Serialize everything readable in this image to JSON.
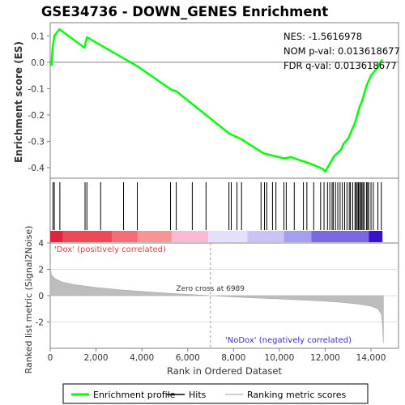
{
  "chart_data": {
    "type": "line",
    "title": "GSE34736 - DOWN_GENES Enrichment",
    "stats": {
      "nes": "NES: -1.5616978",
      "nom_p": "NOM p-val: 0.013618677",
      "fdr_q": "FDR q-val: 0.013618677"
    },
    "xlabel": "Rank in Ordered Dataset",
    "xlim": [
      0,
      15200
    ],
    "x_ticks": [
      0,
      2000,
      4000,
      6000,
      8000,
      10000,
      12000,
      14000
    ],
    "x_tick_labels": [
      "0",
      "2,000",
      "4,000",
      "6,000",
      "8,000",
      "10,000",
      "12,000",
      "14,000"
    ],
    "es_panel": {
      "ylabel": "Enrichment score (ES)",
      "ylim": [
        -0.44,
        0.15
      ],
      "y_ticks": [
        0.1,
        0.0,
        -0.1,
        -0.2,
        -0.3,
        -0.4
      ],
      "y_tick_labels": [
        "0.1",
        "0.0",
        "-0.1",
        "-0.2",
        "-0.3",
        "-0.4"
      ],
      "line_color": "#00ff00",
      "series": [
        {
          "x": [
            0,
            60,
            100,
            180,
            400,
            1500,
            1600,
            2200,
            3200,
            3800,
            5300,
            5500,
            7800,
            8300,
            9300,
            9500,
            10000,
            10200,
            10500,
            11000,
            11200,
            11500,
            11900,
            12000,
            12100,
            12200,
            12300,
            12400,
            12600,
            12700,
            12800,
            12900,
            13000,
            13100,
            13200,
            13300,
            13400,
            13500,
            13600,
            13700,
            13800,
            13900,
            14000,
            14100,
            14200,
            14300,
            14400,
            14500
          ],
          "y": [
            0.0,
            -0.01,
            0.05,
            0.1,
            0.125,
            0.055,
            0.095,
            0.065,
            0.015,
            -0.015,
            -0.105,
            -0.11,
            -0.27,
            -0.29,
            -0.345,
            -0.35,
            -0.36,
            -0.365,
            -0.36,
            -0.375,
            -0.38,
            -0.39,
            -0.405,
            -0.415,
            -0.4,
            -0.385,
            -0.37,
            -0.355,
            -0.34,
            -0.33,
            -0.31,
            -0.3,
            -0.29,
            -0.27,
            -0.25,
            -0.23,
            -0.2,
            -0.17,
            -0.15,
            -0.12,
            -0.09,
            -0.07,
            -0.05,
            -0.04,
            -0.03,
            -0.02,
            0.0,
            0.01
          ]
        }
      ]
    },
    "hits": [
      120,
      180,
      420,
      1520,
      1600,
      2200,
      3200,
      3800,
      5250,
      5500,
      6200,
      6800,
      7800,
      7900,
      8150,
      8350,
      9200,
      9350,
      9450,
      9700,
      9850,
      10200,
      10300,
      10650,
      11050,
      11200,
      11500,
      11800,
      11950,
      12100,
      12200,
      12300,
      12350,
      12450,
      12550,
      12650,
      12750,
      12850,
      12950,
      13050,
      13100,
      13200,
      13300,
      13350,
      13400,
      13450,
      13500,
      13550,
      13600,
      13650,
      13700,
      13800,
      13850,
      13900,
      14000,
      14100,
      14300,
      14450
    ],
    "ranking_bar": {
      "segments": [
        {
          "x0": 0,
          "x1": 550,
          "color": "#e0263f"
        },
        {
          "x0": 550,
          "x1": 2700,
          "color": "#ec4959"
        },
        {
          "x0": 2700,
          "x1": 3800,
          "color": "#f46c78"
        },
        {
          "x0": 3800,
          "x1": 5300,
          "color": "#f89398"
        },
        {
          "x0": 5300,
          "x1": 6900,
          "color": "#fbb9d4"
        },
        {
          "x0": 6900,
          "x1": 8600,
          "color": "#e4e0fa"
        },
        {
          "x0": 8600,
          "x1": 10200,
          "color": "#c9c4f4"
        },
        {
          "x0": 10200,
          "x1": 11400,
          "color": "#a69ef0"
        },
        {
          "x0": 11400,
          "x1": 13900,
          "color": "#7a68e2"
        },
        {
          "x0": 13900,
          "x1": 14500,
          "color": "#3a10c8"
        }
      ],
      "pos_label": "'Dox' (positively correlated)",
      "neg_label": "'NoDox' (negatively correlated)",
      "pos_color": "#e8404c",
      "neg_color": "#3a2cc6"
    },
    "metric_panel": {
      "ylabel": "Ranked list metric (Signal2Noise)",
      "ylim": [
        -4,
        4
      ],
      "y_ticks": [
        4,
        2,
        0,
        -2
      ],
      "y_tick_labels": [
        "4",
        "2",
        "0",
        "-2"
      ],
      "fill_color": "#bdbdbd",
      "zero_cross": 6989,
      "zero_cross_label": "Zero cross at 6989",
      "curve": {
        "x": [
          0,
          50,
          200,
          500,
          1000,
          2000,
          3000,
          4000,
          5000,
          6000,
          6989,
          8000,
          9000,
          10000,
          11000,
          12000,
          12800,
          13500,
          14000,
          14300,
          14450,
          14500,
          14520,
          14540
        ],
        "y": [
          2.3,
          1.6,
          1.3,
          1.05,
          0.85,
          0.62,
          0.45,
          0.32,
          0.2,
          0.1,
          0.0,
          -0.1,
          -0.18,
          -0.25,
          -0.33,
          -0.42,
          -0.52,
          -0.65,
          -0.8,
          -1.0,
          -1.4,
          -2.2,
          -3.0,
          -3.6
        ]
      }
    },
    "legend": {
      "placement": "bottom",
      "items": [
        {
          "label": "Enrichment profile",
          "color": "#00ff00"
        },
        {
          "label": "Hits",
          "color": "#000000"
        },
        {
          "label": "Ranking metric scores",
          "color": "#bdbdbd"
        }
      ]
    }
  }
}
